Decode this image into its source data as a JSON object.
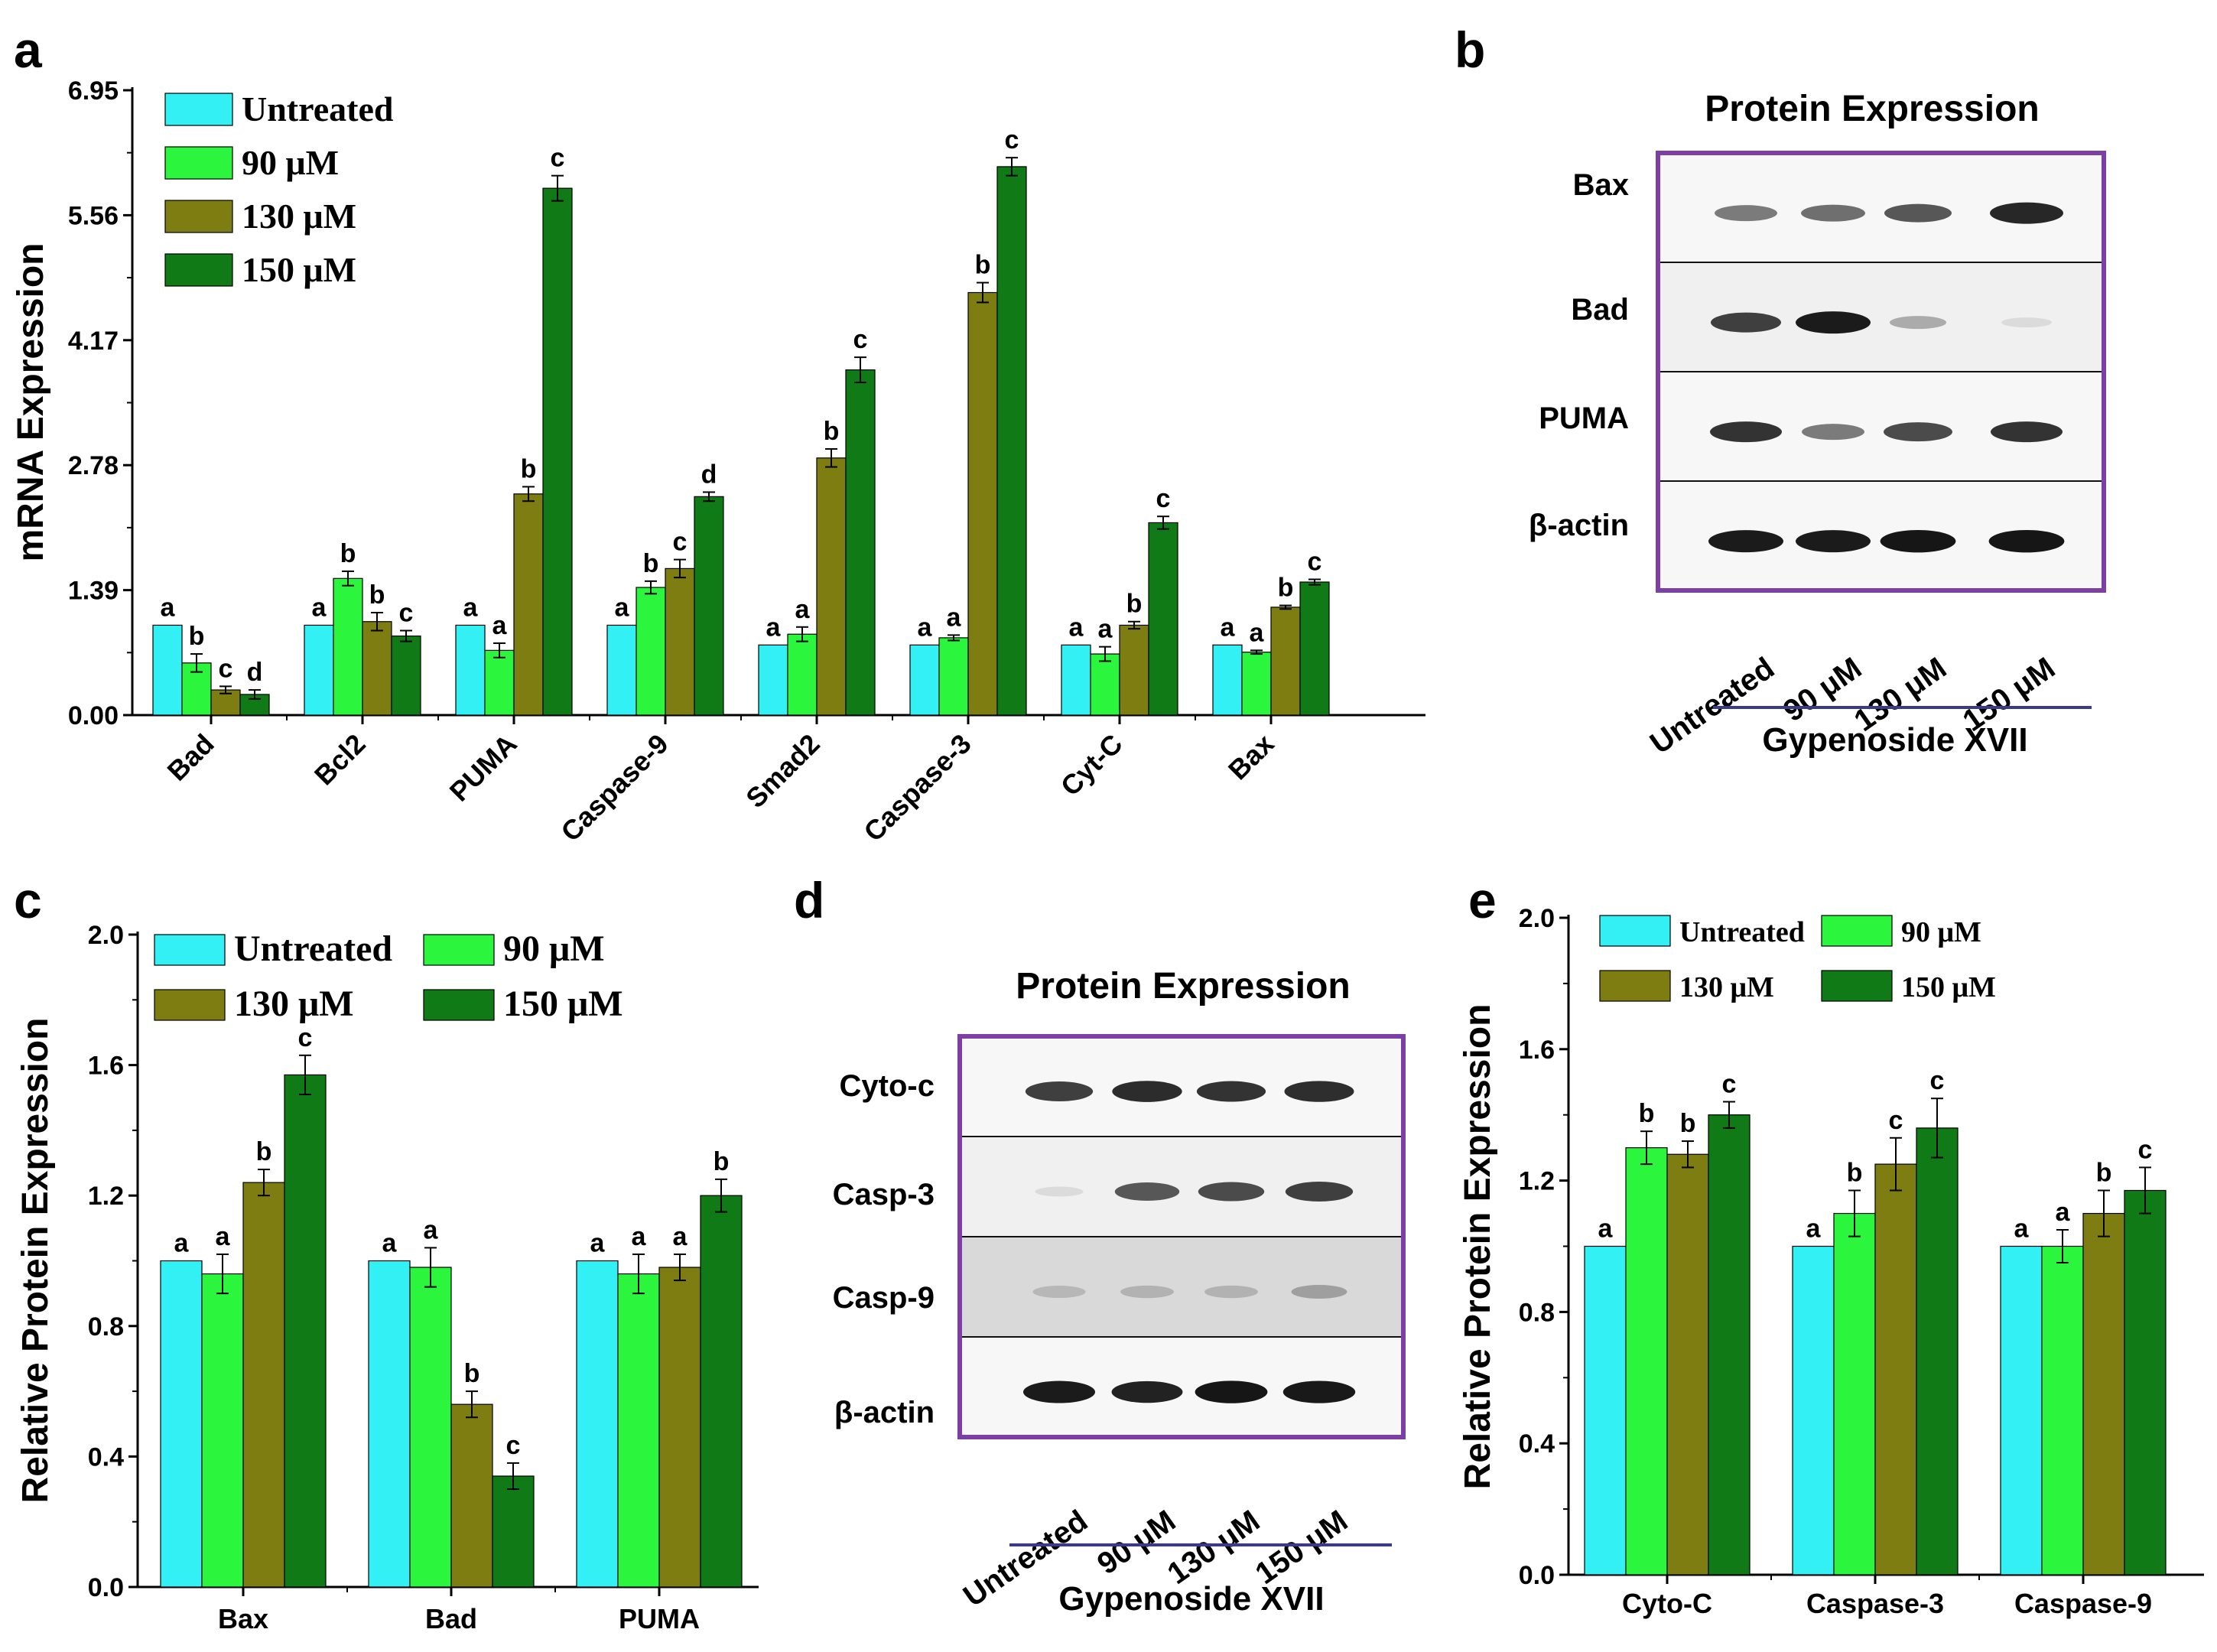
{
  "colors": {
    "Untreated": "#33f0f4",
    "90 μM": "#2cf53e",
    "130 μM": "#7e7d12",
    "150 μM": "#0f7a16",
    "frame": "#7b3fa6",
    "treat_line": "#3a3a8c"
  },
  "panels": [
    {
      "id": "a",
      "label": "a"
    },
    {
      "id": "b",
      "label": "b"
    },
    {
      "id": "c",
      "label": "c"
    },
    {
      "id": "d",
      "label": "d"
    },
    {
      "id": "e",
      "label": "e"
    }
  ],
  "chart_data": [
    {
      "panel": "a",
      "type": "bar",
      "ylabel": "mRNA Expression",
      "ylim": [
        0,
        6.95
      ],
      "yticks": [
        "0.00",
        "1.39",
        "2.78",
        "4.17",
        "5.56",
        "6.95"
      ],
      "legend_position": "top-left",
      "categories": [
        "Bad",
        "Bcl2",
        "PUMA",
        "Caspase-9",
        "Smad2",
        "Caspase-3",
        "Cyt-C",
        "Bax"
      ],
      "series": [
        {
          "name": "Untreated",
          "values": [
            1.0,
            1.0,
            1.0,
            1.0,
            0.78,
            0.78,
            0.78,
            0.78
          ],
          "errors": [
            0,
            0,
            0,
            0,
            0,
            0,
            0,
            0
          ],
          "letters": [
            "a",
            "a",
            "a",
            "a",
            "a",
            "a",
            "a",
            "a"
          ]
        },
        {
          "name": "90 μM",
          "values": [
            0.58,
            1.52,
            0.72,
            1.42,
            0.9,
            0.86,
            0.68,
            0.7
          ],
          "errors": [
            0.1,
            0.08,
            0.08,
            0.07,
            0.08,
            0.03,
            0.08,
            0.02
          ],
          "letters": [
            "b",
            "b",
            "a",
            "b",
            "a",
            "a",
            "a",
            "a"
          ]
        },
        {
          "name": "130 μM",
          "values": [
            0.28,
            1.04,
            2.46,
            1.63,
            2.86,
            4.7,
            1.0,
            1.2
          ],
          "errors": [
            0.04,
            0.1,
            0.08,
            0.1,
            0.1,
            0.11,
            0.04,
            0.02
          ],
          "letters": [
            "c",
            "b",
            "b",
            "c",
            "b",
            "b",
            "b",
            "b"
          ]
        },
        {
          "name": "150 μM",
          "values": [
            0.23,
            0.88,
            5.86,
            2.43,
            3.84,
            6.1,
            2.14,
            1.48
          ],
          "errors": [
            0.05,
            0.06,
            0.14,
            0.05,
            0.14,
            0.1,
            0.07,
            0.03
          ],
          "letters": [
            "d",
            "c",
            "c",
            "d",
            "c",
            "c",
            "c",
            "c"
          ]
        }
      ]
    },
    {
      "panel": "c",
      "type": "bar",
      "ylabel": "Relative Protein Expression",
      "ylim": [
        0,
        2.0
      ],
      "yticks": [
        "0.0",
        "0.4",
        "0.8",
        "1.2",
        "1.6",
        "2.0"
      ],
      "legend_position": "top",
      "categories": [
        "Bax",
        "Bad",
        "PUMA"
      ],
      "series": [
        {
          "name": "Untreated",
          "values": [
            1.0,
            1.0,
            1.0
          ],
          "errors": [
            0,
            0,
            0
          ],
          "letters": [
            "a",
            "a",
            "a"
          ]
        },
        {
          "name": "90 μM",
          "values": [
            0.96,
            0.98,
            0.96
          ],
          "errors": [
            0.06,
            0.06,
            0.06
          ],
          "letters": [
            "a",
            "a",
            "a"
          ]
        },
        {
          "name": "130 μM",
          "values": [
            1.24,
            0.56,
            0.98
          ],
          "errors": [
            0.04,
            0.04,
            0.04
          ],
          "letters": [
            "b",
            "b",
            "a"
          ]
        },
        {
          "name": "150 μM",
          "values": [
            1.57,
            0.34,
            1.2
          ],
          "errors": [
            0.06,
            0.04,
            0.05
          ],
          "letters": [
            "c",
            "c",
            "b"
          ]
        }
      ]
    },
    {
      "panel": "e",
      "type": "bar",
      "ylabel": "Relative Protein Expression",
      "ylim": [
        0,
        2.0
      ],
      "yticks": [
        "0.0",
        "0.4",
        "0.8",
        "1.2",
        "1.6",
        "2.0"
      ],
      "legend_position": "top",
      "categories": [
        "Cyto-C",
        "Caspase-3",
        "Caspase-9"
      ],
      "series": [
        {
          "name": "Untreated",
          "values": [
            1.0,
            1.0,
            1.0
          ],
          "errors": [
            0,
            0,
            0
          ],
          "letters": [
            "a",
            "a",
            "a"
          ]
        },
        {
          "name": "90 μM",
          "values": [
            1.3,
            1.1,
            1.0
          ],
          "errors": [
            0.05,
            0.07,
            0.05
          ],
          "letters": [
            "b",
            "b",
            "a"
          ]
        },
        {
          "name": "130 μM",
          "values": [
            1.28,
            1.25,
            1.1
          ],
          "errors": [
            0.04,
            0.08,
            0.07
          ],
          "letters": [
            "b",
            "c",
            "b"
          ]
        },
        {
          "name": "150 μM",
          "values": [
            1.4,
            1.36,
            1.17
          ],
          "errors": [
            0.04,
            0.09,
            0.07
          ],
          "letters": [
            "c",
            "c",
            "c"
          ]
        }
      ]
    }
  ],
  "blots": [
    {
      "panel": "b",
      "title": "Protein Expression",
      "rows": [
        "Bax",
        "Bad",
        "PUMA",
        "β-actin"
      ],
      "lanes": [
        "Untreated",
        "90 μM",
        "130 μM",
        "150 μM"
      ],
      "treatment": "Gypenoside XVII",
      "intensity": [
        [
          0.55,
          0.6,
          0.7,
          0.9
        ],
        [
          0.8,
          0.95,
          0.35,
          0.15
        ],
        [
          0.85,
          0.55,
          0.75,
          0.85
        ],
        [
          0.95,
          0.95,
          0.97,
          0.97
        ]
      ]
    },
    {
      "panel": "d",
      "title": "Protein Expression",
      "rows": [
        "Cyto-c",
        "Casp-3",
        "Casp-9",
        "β-actin"
      ],
      "lanes": [
        "Untreated",
        "90 μM",
        "130 μM",
        "150 μM"
      ],
      "treatment": "Gypenoside XVII",
      "intensity": [
        [
          0.8,
          0.88,
          0.85,
          0.87
        ],
        [
          0.15,
          0.7,
          0.75,
          0.8
        ],
        [
          0.3,
          0.32,
          0.32,
          0.4
        ],
        [
          0.95,
          0.92,
          0.97,
          0.96
        ]
      ]
    }
  ]
}
